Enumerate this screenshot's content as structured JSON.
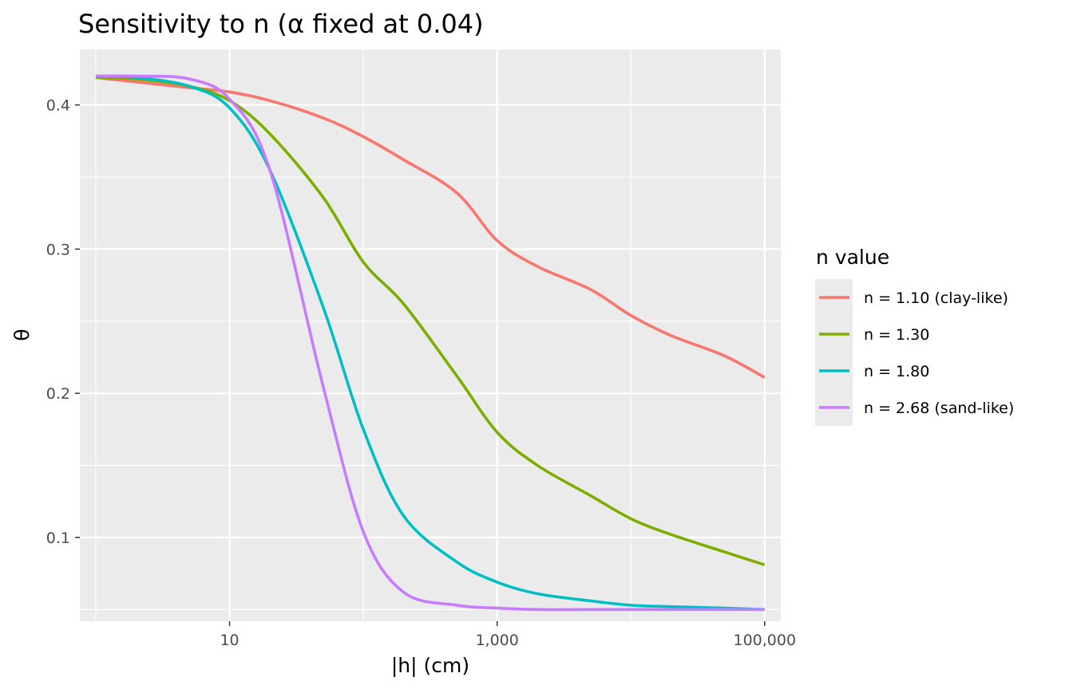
{
  "chart_data": {
    "type": "line",
    "title": "Sensitivity to n (α fixed at 0.04)",
    "xlabel": "|h| (cm)",
    "ylabel": "θ",
    "xscale": "log10",
    "xlim": [
      0.76,
      132000
    ],
    "ylim": [
      0.0419,
      0.4385
    ],
    "x_ticks": [
      10,
      1000,
      100000
    ],
    "x_tick_labels": [
      "10",
      "1,000",
      "100,000"
    ],
    "y_ticks": [
      0.1,
      0.2,
      0.3,
      0.4
    ],
    "y_tick_labels": [
      "0.1",
      "0.2",
      "0.3",
      "0.4"
    ],
    "grid": true,
    "legend": {
      "title": "n value",
      "position": "right"
    },
    "x": [
      1,
      2,
      5,
      10,
      20,
      50,
      100,
      200,
      500,
      1000,
      2000,
      5000,
      10000,
      20000,
      50000,
      100000
    ],
    "series": [
      {
        "name": "n = 1.10 (clay-like)",
        "color": "#F8766D",
        "values": [
          0.419,
          0.416,
          0.412,
          0.409,
          0.403,
          0.391,
          0.378,
          0.362,
          0.339,
          0.306,
          0.288,
          0.272,
          0.254,
          0.24,
          0.226,
          0.211
        ]
      },
      {
        "name": "n = 1.30",
        "color": "#7CAE00",
        "values": [
          0.419,
          0.418,
          0.413,
          0.403,
          0.38,
          0.336,
          0.291,
          0.262,
          0.212,
          0.173,
          0.15,
          0.129,
          0.113,
          0.102,
          0.09,
          0.081
        ]
      },
      {
        "name": "n = 1.80",
        "color": "#00BFC4",
        "values": [
          0.42,
          0.419,
          0.413,
          0.398,
          0.355,
          0.26,
          0.175,
          0.115,
          0.083,
          0.069,
          0.061,
          0.056,
          0.053,
          0.052,
          0.051,
          0.05
        ]
      },
      {
        "name": "n = 2.68 (sand-like)",
        "color": "#C77CFF",
        "values": [
          0.42,
          0.42,
          0.418,
          0.404,
          0.355,
          0.205,
          0.104,
          0.062,
          0.053,
          0.051,
          0.05,
          0.05,
          0.05,
          0.05,
          0.05,
          0.05
        ]
      }
    ]
  }
}
